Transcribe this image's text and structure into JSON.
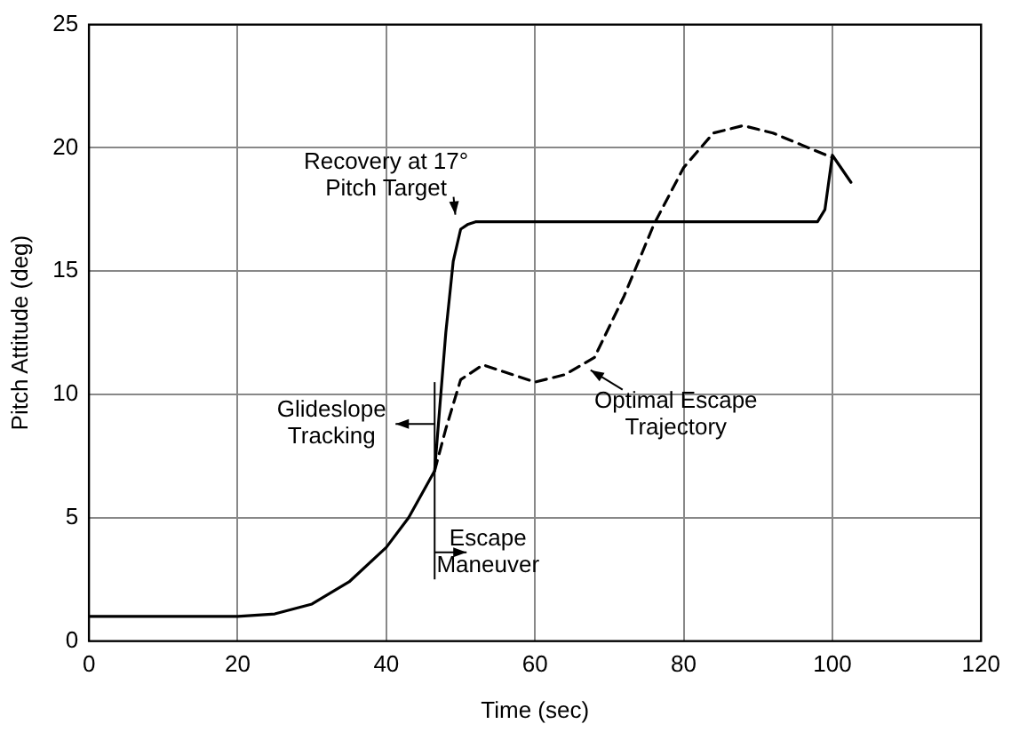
{
  "chart_data": {
    "type": "line",
    "xlabel": "Time (sec)",
    "ylabel": "Pitch Attitude (deg)",
    "xlim": [
      0,
      120
    ],
    "xticks": [
      0,
      20,
      40,
      60,
      80,
      100,
      120
    ],
    "ylim": [
      0,
      25
    ],
    "yticks": [
      0,
      5,
      10,
      15,
      20,
      25
    ],
    "grid": true,
    "legend": false,
    "marker": "none",
    "series": [
      {
        "color": "#000000",
        "line_style": "solid",
        "x": [
          0,
          10,
          20,
          25,
          30,
          35,
          40,
          43,
          46.5,
          48,
          49,
          50,
          51,
          52,
          60,
          70,
          80,
          90,
          98,
          99,
          100,
          102.5
        ],
        "values": [
          1.0,
          1.0,
          1.0,
          1.1,
          1.5,
          2.4,
          3.8,
          5.0,
          6.9,
          12.5,
          15.4,
          16.7,
          16.9,
          17.0,
          17.0,
          17.0,
          17.0,
          17.0,
          17.0,
          17.5,
          19.7,
          18.6
        ]
      },
      {
        "color": "#000000",
        "line_style": "dashed",
        "x": [
          46.5,
          48,
          50,
          53,
          56,
          60,
          64,
          68,
          72,
          76,
          80,
          84,
          88,
          92,
          96,
          100
        ],
        "values": [
          6.9,
          8.6,
          10.6,
          11.2,
          10.9,
          10.5,
          10.8,
          11.5,
          14.0,
          16.9,
          19.2,
          20.6,
          20.9,
          20.6,
          20.1,
          19.6
        ]
      }
    ],
    "ref_lines": [
      {
        "axis": "x",
        "value": 46.5
      }
    ],
    "annotations": [
      {
        "text": "Recovery at 17°\nPitch Target",
        "x": 50,
        "y": 17
      },
      {
        "text": "Glideslope\nTracking"
      },
      {
        "text": "Escape\nManeuver"
      },
      {
        "text": "Optimal Escape\nTrajectory",
        "x": 67,
        "y": 11.2
      }
    ]
  }
}
